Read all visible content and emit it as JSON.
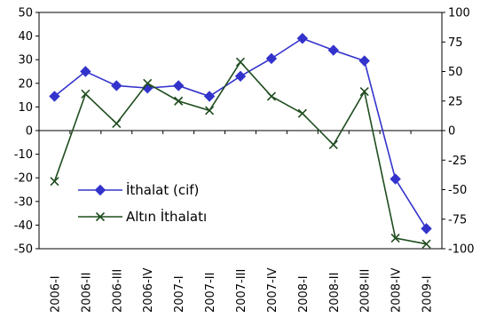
{
  "chart_data": {
    "type": "line",
    "categories": [
      "2006-I",
      "2006-II",
      "2006-III",
      "2006-IV",
      "2007-I",
      "2007-II",
      "2007-III",
      "2007-IV",
      "2008-I",
      "2008-II",
      "2008-III",
      "2008-IV",
      "2009-I"
    ],
    "y_left": {
      "range": [
        -50,
        50
      ],
      "ticks": [
        "50",
        "40",
        "30",
        "20",
        "10",
        "0",
        "-10",
        "-20",
        "-30",
        "-40",
        "-50"
      ]
    },
    "y_right": {
      "range": [
        -100,
        100
      ],
      "ticks": [
        "100",
        "75",
        "50",
        "25",
        "0",
        "-25",
        "-50",
        "-75",
        "-100"
      ]
    },
    "grid": false,
    "legend_position": "bottom-left",
    "series": [
      {
        "name": "İthalat (cif)",
        "axis": "left",
        "color": "#3333cc",
        "marker": "diamond",
        "values": [
          14.5,
          25,
          19,
          18,
          19,
          14.5,
          23,
          30.5,
          39,
          34,
          29.5,
          -20.5,
          -41.5
        ]
      },
      {
        "name": "Altın İthalatı",
        "axis": "right",
        "color": "#1f4d1f",
        "marker": "x",
        "values": [
          -43,
          31,
          6,
          40,
          25,
          17,
          58,
          29,
          14.5,
          -12,
          33,
          -91,
          -96
        ]
      }
    ]
  }
}
